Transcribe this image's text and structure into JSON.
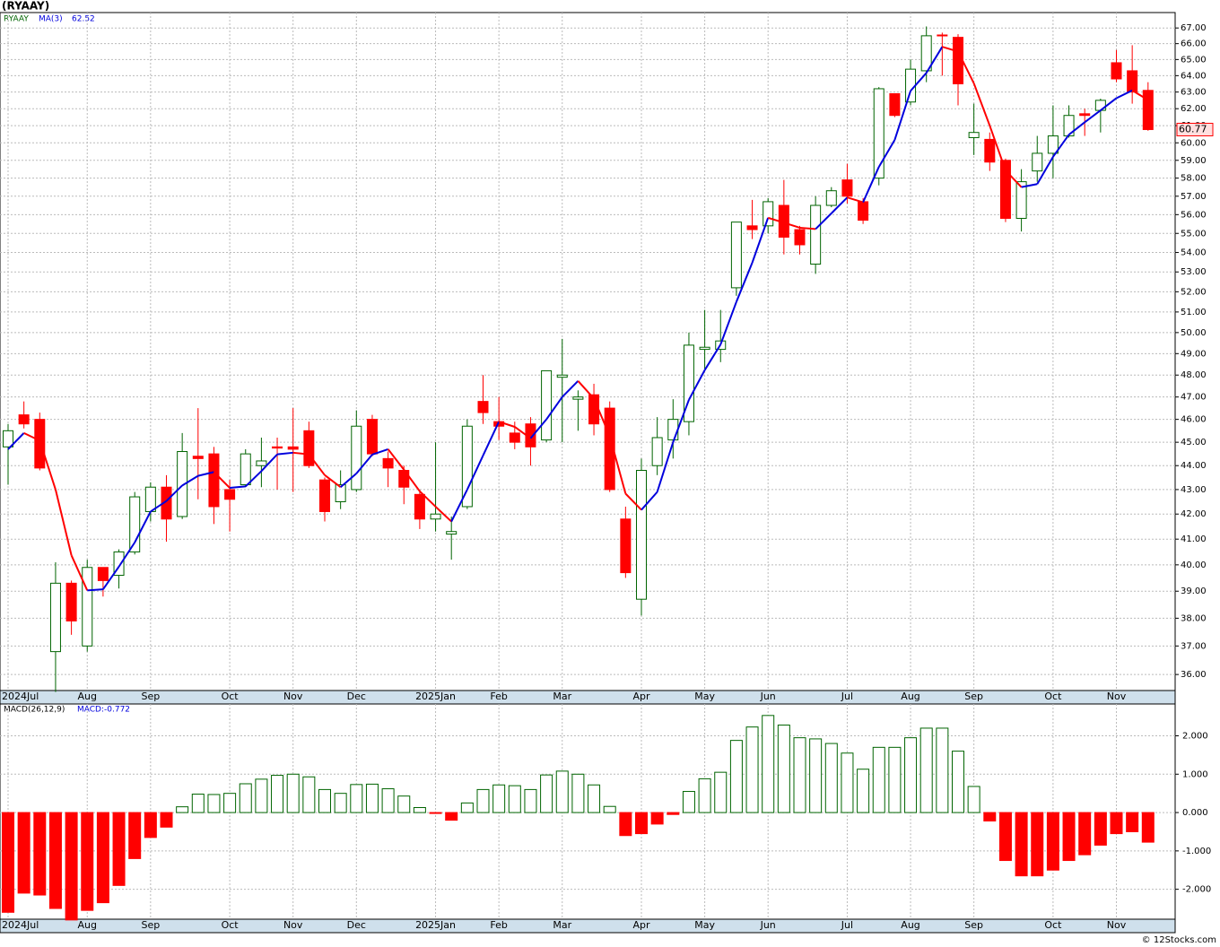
{
  "chart_data": [
    {
      "type": "candlestick",
      "title": "(RYAAY)",
      "name": "RYAAY",
      "log": true,
      "grid": true,
      "categories": [
        "2024Jul",
        null,
        null,
        null,
        null,
        "Aug",
        null,
        null,
        null,
        "Sep",
        null,
        null,
        null,
        null,
        "Oct",
        null,
        null,
        null,
        "Nov",
        null,
        null,
        null,
        "Dec",
        null,
        null,
        null,
        null,
        "2025Jan",
        null,
        null,
        null,
        "Feb",
        null,
        null,
        null,
        "Mar",
        null,
        null,
        null,
        null,
        "Apr",
        null,
        null,
        null,
        "May",
        null,
        null,
        null,
        "Jun",
        null,
        null,
        null,
        null,
        "Jul",
        null,
        null,
        null,
        "Aug",
        null,
        null,
        null,
        "Sep",
        null,
        null,
        null,
        null,
        "Oct",
        null,
        null,
        null,
        "Nov",
        null,
        null
      ],
      "open": [
        44.8,
        46.2,
        46.0,
        36.8,
        39.3,
        37.0,
        39.9,
        39.6,
        40.5,
        42.1,
        43.1,
        41.9,
        44.4,
        44.5,
        43.0,
        43.2,
        44.0,
        44.8,
        44.8,
        45.5,
        43.4,
        42.5,
        43.0,
        46.0,
        44.3,
        43.8,
        42.8,
        41.8,
        41.2,
        42.3,
        46.8,
        45.9,
        45.4,
        45.8,
        45.1,
        47.9,
        46.9,
        47.1,
        46.5,
        41.8,
        38.7,
        44.0,
        45.1,
        45.9,
        49.2,
        49.2,
        52.2,
        55.4,
        55.4,
        56.5,
        55.2,
        53.4,
        56.5,
        57.9,
        56.7,
        58.0,
        62.9,
        62.4,
        64.3,
        66.55,
        66.4,
        60.3,
        60.2,
        59.0,
        55.8,
        58.4,
        59.4,
        60.4,
        61.7,
        61.9,
        64.8,
        64.3,
        63.1
      ],
      "high": [
        45.8,
        46.8,
        46.3,
        40.1,
        39.4,
        40.2,
        39.9,
        40.6,
        42.9,
        43.3,
        43.6,
        45.4,
        46.5,
        44.8,
        43.4,
        44.7,
        45.2,
        45.2,
        46.5,
        45.9,
        43.5,
        43.8,
        46.4,
        46.2,
        44.6,
        44.0,
        43.0,
        45.0,
        41.9,
        46.0,
        48.0,
        47.0,
        45.9,
        46.1,
        48.2,
        49.7,
        47.3,
        47.6,
        46.8,
        42.3,
        44.3,
        46.1,
        46.9,
        50.0,
        51.1,
        51.1,
        55.6,
        56.8,
        56.9,
        57.9,
        55.4,
        57.0,
        57.5,
        58.8,
        56.9,
        63.3,
        62.9,
        65.0,
        67.1,
        66.7,
        66.6,
        62.3,
        60.6,
        59.1,
        58.5,
        60.4,
        62.2,
        62.2,
        62.0,
        62.6,
        65.6,
        65.9,
        63.6
      ],
      "low": [
        43.2,
        45.6,
        43.8,
        35.4,
        37.4,
        36.8,
        38.8,
        39.1,
        40.4,
        41.7,
        40.9,
        41.8,
        42.6,
        41.6,
        41.3,
        43.1,
        43.1,
        43.0,
        42.9,
        43.9,
        41.7,
        42.2,
        42.9,
        44.4,
        43.1,
        42.4,
        41.4,
        41.3,
        40.2,
        42.2,
        45.8,
        45.1,
        44.7,
        44.0,
        45.0,
        45.0,
        45.5,
        45.3,
        42.9,
        39.5,
        38.1,
        43.6,
        44.3,
        45.3,
        48.3,
        48.6,
        51.8,
        54.7,
        55.0,
        53.9,
        53.9,
        52.9,
        56.4,
        56.6,
        55.5,
        57.6,
        61.5,
        62.2,
        63.6,
        64.0,
        62.2,
        59.3,
        58.4,
        55.6,
        55.1,
        57.8,
        58.0,
        60.3,
        60.4,
        60.6,
        63.6,
        62.3,
        60.7
      ],
      "close": [
        45.5,
        45.8,
        43.9,
        39.3,
        37.9,
        39.9,
        39.4,
        40.5,
        42.7,
        43.1,
        41.8,
        44.6,
        44.3,
        42.3,
        42.6,
        44.5,
        44.2,
        44.75,
        44.7,
        44.0,
        42.1,
        43.2,
        45.7,
        44.5,
        43.9,
        43.1,
        41.8,
        42.0,
        41.3,
        45.7,
        46.3,
        45.7,
        45.0,
        44.8,
        48.2,
        48.0,
        47.0,
        45.8,
        43.0,
        39.7,
        43.8,
        45.2,
        46.0,
        49.4,
        49.3,
        49.6,
        55.6,
        55.2,
        56.7,
        54.8,
        54.4,
        56.5,
        57.3,
        57.0,
        55.7,
        63.2,
        61.6,
        64.4,
        66.5,
        66.5,
        63.5,
        60.6,
        58.9,
        55.8,
        57.8,
        59.4,
        60.4,
        61.6,
        61.6,
        62.5,
        63.8,
        63.0,
        60.77
      ],
      "up_color": "#006400",
      "down_color": "#ff0000",
      "ma": {
        "name": "MA(3)",
        "up_color": "#0000dd",
        "down_color": "#ff0000",
        "values": [
          44.7,
          45.4,
          45.07,
          43.0,
          40.37,
          39.03,
          39.07,
          39.93,
          40.87,
          42.1,
          42.53,
          43.17,
          43.57,
          43.73,
          43.07,
          43.13,
          43.77,
          44.48,
          44.55,
          44.48,
          43.6,
          43.1,
          43.67,
          44.47,
          44.7,
          43.83,
          42.93,
          42.3,
          41.7,
          43.0,
          44.43,
          45.9,
          45.67,
          45.17,
          46.0,
          47.0,
          47.73,
          46.93,
          45.27,
          42.83,
          42.17,
          42.9,
          45.0,
          46.87,
          48.23,
          49.43,
          51.5,
          53.47,
          55.83,
          55.57,
          55.3,
          55.23,
          56.07,
          56.93,
          56.67,
          58.63,
          60.17,
          63.07,
          64.17,
          65.8,
          65.5,
          63.53,
          61.0,
          58.43,
          57.5,
          57.67,
          59.2,
          60.47,
          61.2,
          61.9,
          62.63,
          63.1,
          62.52
        ]
      },
      "ylim": [
        35.45,
        68
      ],
      "yticks": [
        {
          "value": 36,
          "label": "36.00"
        },
        {
          "value": 37,
          "label": "37.00"
        },
        {
          "value": 38,
          "label": "38.00"
        },
        {
          "value": 39,
          "label": "39.00"
        },
        {
          "value": 40,
          "label": "40.00"
        },
        {
          "value": 41,
          "label": "41.00"
        },
        {
          "value": 42,
          "label": "42.00"
        },
        {
          "value": 43,
          "label": "43.00"
        },
        {
          "value": 44,
          "label": "44.00"
        },
        {
          "value": 45,
          "label": "45.00"
        },
        {
          "value": 46,
          "label": "46.00"
        },
        {
          "value": 47,
          "label": "47.00"
        },
        {
          "value": 48,
          "label": "48.00"
        },
        {
          "value": 49,
          "label": "49.00"
        },
        {
          "value": 50,
          "label": "50.00"
        },
        {
          "value": 51,
          "label": "51.00"
        },
        {
          "value": 52,
          "label": "52.00"
        },
        {
          "value": 53,
          "label": "53.00"
        },
        {
          "value": 54,
          "label": "54.00"
        },
        {
          "value": 55,
          "label": "55.00"
        },
        {
          "value": 56,
          "label": "56.00"
        },
        {
          "value": 57,
          "label": "57.00"
        },
        {
          "value": 58,
          "label": "58.00"
        },
        {
          "value": 59,
          "label": "59.00"
        },
        {
          "value": 60,
          "label": "60.00"
        },
        {
          "value": 61,
          "label": "61.00"
        },
        {
          "value": 62,
          "label": "62.00"
        },
        {
          "value": 63,
          "label": "63.00"
        },
        {
          "value": 64,
          "label": "64.00"
        },
        {
          "value": 65,
          "label": "65.00"
        },
        {
          "value": 66,
          "label": "66.00"
        },
        {
          "value": 67,
          "label": "67.00"
        }
      ]
    },
    {
      "type": "bar",
      "name": "MACD(26,12,9)",
      "last_label": "MACD:-0.772",
      "grid": true,
      "pos_color": "#006400",
      "neg_color": "#ff0000",
      "values": [
        -2.6,
        -2.1,
        -2.15,
        -2.5,
        -2.8,
        -2.55,
        -2.35,
        -1.9,
        -1.2,
        -0.65,
        -0.38,
        0.15,
        0.48,
        0.47,
        0.5,
        0.75,
        0.87,
        0.97,
        1.0,
        0.93,
        0.6,
        0.5,
        0.73,
        0.74,
        0.62,
        0.43,
        0.13,
        -0.02,
        -0.2,
        0.25,
        0.6,
        0.72,
        0.7,
        0.6,
        0.98,
        1.08,
        1.0,
        0.72,
        0.16,
        -0.6,
        -0.55,
        -0.3,
        -0.05,
        0.55,
        0.88,
        1.05,
        1.88,
        2.23,
        2.53,
        2.28,
        1.95,
        1.92,
        1.8,
        1.55,
        1.13,
        1.7,
        1.7,
        1.95,
        2.2,
        2.2,
        1.6,
        0.68,
        -0.22,
        -1.25,
        -1.65,
        -1.65,
        -1.5,
        -1.25,
        -1.1,
        -0.85,
        -0.55,
        -0.5,
        -0.772
      ],
      "ylim": [
        -2.78,
        2.83
      ],
      "yticks": [
        {
          "value": -2,
          "label": "-2.000"
        },
        {
          "value": -1,
          "label": "-1.000"
        },
        {
          "value": 0,
          "label": "0.000"
        },
        {
          "value": 1,
          "label": "1.000"
        },
        {
          "value": 2,
          "label": "2.000"
        }
      ]
    }
  ],
  "footer": "© 12Stocks.com"
}
